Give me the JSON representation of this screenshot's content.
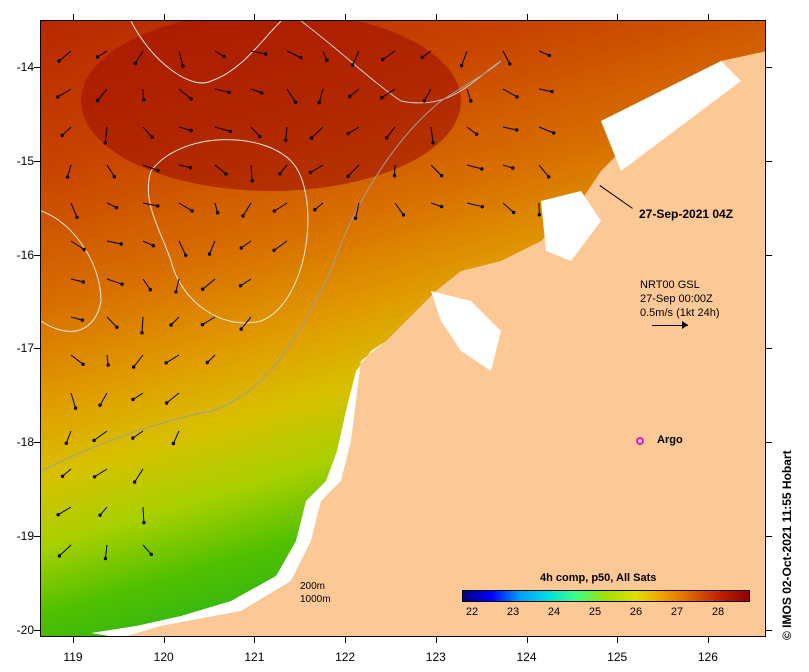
{
  "map": {
    "latitudes": [
      "-14",
      "-15",
      "-16",
      "-17",
      "-18",
      "-19",
      "-20"
    ],
    "longitudes": [
      "119",
      "120",
      "121",
      "122",
      "123",
      "124",
      "125",
      "126"
    ],
    "date_label": "27-Sep-2021 04Z",
    "current_info": [
      "NRT00 GSL",
      "27-Sep 00:00Z",
      "0.5m/s (1kt 24h)"
    ],
    "argo_label": "Argo",
    "credit": "IMOS 02-Oct-2021 11:55 Hobart",
    "credit_symbol": "©",
    "depth_legend": [
      "200m",
      "1000m"
    ],
    "colorbar": {
      "title": "4h comp, p50, All Sats",
      "labels": [
        "22",
        "23",
        "24",
        "25",
        "26",
        "27",
        "28"
      ],
      "colors": [
        "#000080",
        "#0000ff",
        "#00a0ff",
        "#00e0e0",
        "#40ff80",
        "#a0e000",
        "#e0e000",
        "#f0a000",
        "#e06000",
        "#c02000",
        "#900000"
      ]
    },
    "colors": {
      "land": "#fcc896",
      "cloud": "#ffffff",
      "contour": "#e8e8e8",
      "argo": "#d020d0"
    }
  }
}
